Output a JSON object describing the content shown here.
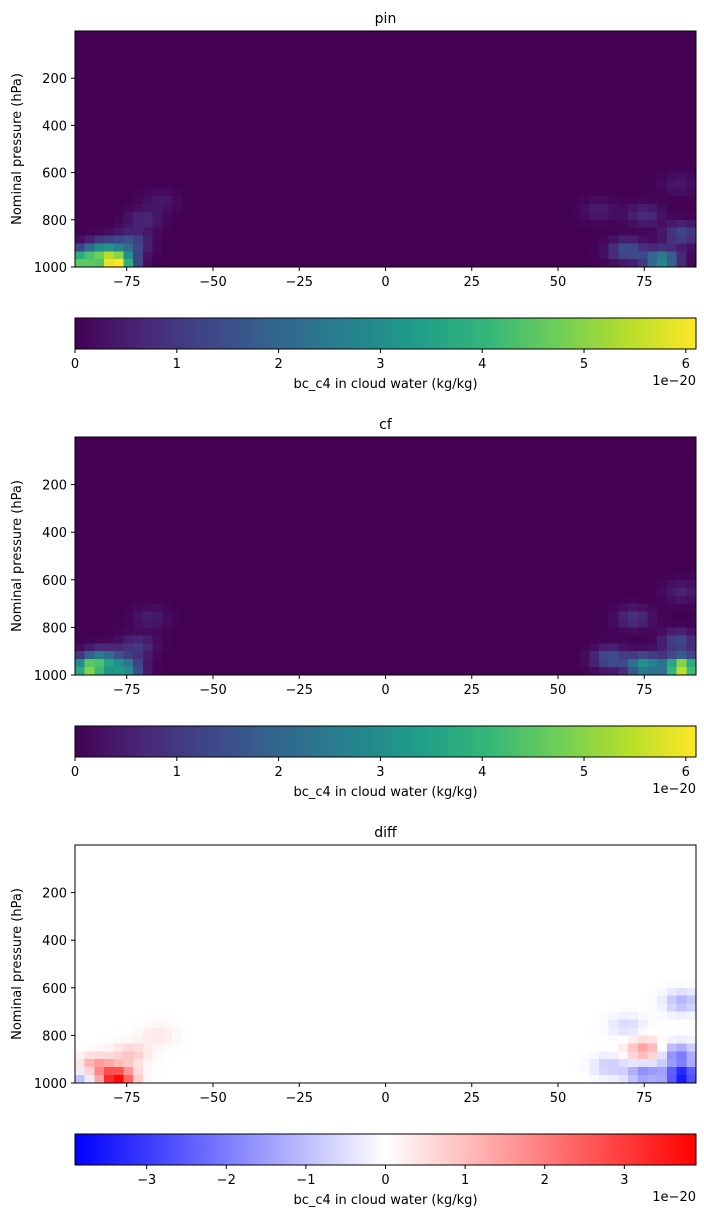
{
  "chart_data": [
    {
      "type": "heatmap",
      "title": "pin",
      "xlabel": "",
      "ylabel": "Nominal pressure (hPa)",
      "xlim": [
        -90,
        90
      ],
      "ylim": [
        1000,
        0
      ],
      "xticks": [
        -75,
        -50,
        -25,
        0,
        25,
        50,
        75
      ],
      "xtick_labels": [
        "−75",
        "−50",
        "−25",
        "0",
        "25",
        "50",
        "75"
      ],
      "yticks": [
        200,
        400,
        600,
        800,
        1000
      ],
      "ytick_labels": [
        "200",
        "400",
        "600",
        "800",
        "1000"
      ],
      "colormap": "viridis",
      "hotspots": [
        {
          "lat": -78,
          "p": 980,
          "value": 6.0
        },
        {
          "lat": -88,
          "p": 975,
          "value": 4.6
        },
        {
          "lat": -82,
          "p": 930,
          "value": 2.6
        },
        {
          "lat": -74,
          "p": 900,
          "value": 1.6
        },
        {
          "lat": -70,
          "p": 800,
          "value": 0.7
        },
        {
          "lat": -65,
          "p": 720,
          "value": 0.4
        },
        {
          "lat": 80,
          "p": 970,
          "value": 3.0
        },
        {
          "lat": 70,
          "p": 930,
          "value": 1.6
        },
        {
          "lat": 86,
          "p": 860,
          "value": 1.4
        },
        {
          "lat": 75,
          "p": 780,
          "value": 0.8
        },
        {
          "lat": 62,
          "p": 760,
          "value": 0.5
        },
        {
          "lat": 85,
          "p": 650,
          "value": 0.4
        }
      ],
      "colorbar": {
        "label": "bc_c4 in cloud water (kg/kg)",
        "min": 0,
        "max": 6.1,
        "ticks": [
          0,
          1,
          2,
          3,
          4,
          5,
          6
        ],
        "tick_labels": [
          "0",
          "1",
          "2",
          "3",
          "4",
          "5",
          "6"
        ],
        "offset": "1e−20",
        "colors": [
          "#440154",
          "#482878",
          "#3e4989",
          "#31688e",
          "#26828e",
          "#1f9e89",
          "#35b779",
          "#6ece58",
          "#b5de2b",
          "#fde725"
        ]
      }
    },
    {
      "type": "heatmap",
      "title": "cf",
      "xlabel": "",
      "ylabel": "Nominal pressure (hPa)",
      "xlim": [
        -90,
        90
      ],
      "ylim": [
        1000,
        0
      ],
      "xticks": [
        -75,
        -50,
        -25,
        0,
        25,
        50,
        75
      ],
      "xtick_labels": [
        "−75",
        "−50",
        "−25",
        "0",
        "25",
        "50",
        "75"
      ],
      "yticks": [
        200,
        400,
        600,
        800,
        1000
      ],
      "ytick_labels": [
        "200",
        "400",
        "600",
        "800",
        "1000"
      ],
      "colormap": "viridis",
      "hotspots": [
        {
          "lat": -86,
          "p": 975,
          "value": 4.8
        },
        {
          "lat": -76,
          "p": 975,
          "value": 3.2
        },
        {
          "lat": -82,
          "p": 930,
          "value": 2.0
        },
        {
          "lat": -72,
          "p": 880,
          "value": 1.0
        },
        {
          "lat": -68,
          "p": 760,
          "value": 0.5
        },
        {
          "lat": 86,
          "p": 970,
          "value": 6.0
        },
        {
          "lat": 75,
          "p": 960,
          "value": 3.2
        },
        {
          "lat": 65,
          "p": 930,
          "value": 1.6
        },
        {
          "lat": 85,
          "p": 860,
          "value": 1.4
        },
        {
          "lat": 72,
          "p": 760,
          "value": 0.9
        },
        {
          "lat": 86,
          "p": 650,
          "value": 0.6
        }
      ],
      "colorbar": {
        "label": "bc_c4 in cloud water (kg/kg)",
        "min": 0,
        "max": 6.1,
        "ticks": [
          0,
          1,
          2,
          3,
          4,
          5,
          6
        ],
        "tick_labels": [
          "0",
          "1",
          "2",
          "3",
          "4",
          "5",
          "6"
        ],
        "offset": "1e−20",
        "colors": [
          "#440154",
          "#482878",
          "#3e4989",
          "#31688e",
          "#26828e",
          "#1f9e89",
          "#35b779",
          "#6ece58",
          "#b5de2b",
          "#fde725"
        ]
      }
    },
    {
      "type": "heatmap",
      "title": "diff",
      "xlabel": "",
      "ylabel": "Nominal pressure (hPa)",
      "xlim": [
        -90,
        90
      ],
      "ylim": [
        1000,
        0
      ],
      "xticks": [
        -75,
        -50,
        -25,
        0,
        25,
        50,
        75
      ],
      "xtick_labels": [
        "−75",
        "−50",
        "−25",
        "0",
        "25",
        "50",
        "75"
      ],
      "yticks": [
        200,
        400,
        600,
        800,
        1000
      ],
      "ytick_labels": [
        "200",
        "400",
        "600",
        "800",
        "1000"
      ],
      "colormap": "bwr",
      "hotspots": [
        {
          "lat": -78,
          "p": 980,
          "value": 3.8
        },
        {
          "lat": -88,
          "p": 975,
          "value": -1.2
        },
        {
          "lat": -84,
          "p": 930,
          "value": 1.6
        },
        {
          "lat": -74,
          "p": 880,
          "value": 0.9
        },
        {
          "lat": -66,
          "p": 800,
          "value": 0.4
        },
        {
          "lat": 86,
          "p": 970,
          "value": -3.8
        },
        {
          "lat": 75,
          "p": 960,
          "value": -1.8
        },
        {
          "lat": 75,
          "p": 860,
          "value": 1.5
        },
        {
          "lat": 85,
          "p": 880,
          "value": -2.0
        },
        {
          "lat": 65,
          "p": 930,
          "value": -0.8
        },
        {
          "lat": 86,
          "p": 660,
          "value": -1.2
        },
        {
          "lat": 70,
          "p": 760,
          "value": -0.6
        }
      ],
      "colorbar": {
        "label": "bc_c4 in cloud water (kg/kg)",
        "min": -3.9,
        "max": 3.9,
        "ticks": [
          -3,
          -2,
          -1,
          0,
          1,
          2,
          3
        ],
        "tick_labels": [
          "−3",
          "−2",
          "−1",
          "0",
          "1",
          "2",
          "3"
        ],
        "offset": "1e−20",
        "colors": [
          "#0000ff",
          "#ffffff",
          "#ff0000"
        ]
      }
    }
  ]
}
